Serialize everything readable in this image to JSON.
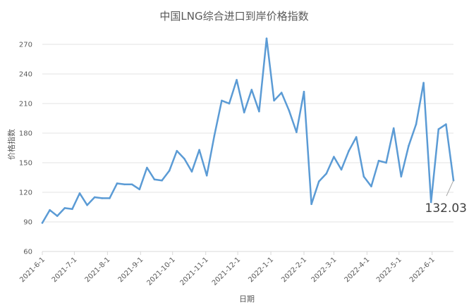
{
  "chart_data": {
    "type": "line",
    "title": "中国LNG综合进口到岸价格指数",
    "xlabel": "日期",
    "ylabel": "价格指数",
    "ylim": [
      60,
      270
    ],
    "yticks": [
      60,
      90,
      120,
      150,
      180,
      210,
      240,
      270
    ],
    "xtick_labels": [
      "2021-6-1",
      "2021-7-1",
      "2021-8-1",
      "2021-9-1",
      "2021-10-1",
      "2021-11-1",
      "2021-12-1",
      "2022-1-1",
      "2022-2-1",
      "2022-3-1",
      "2022-4-1",
      "2022-5-1",
      "2022-6-1"
    ],
    "grid": "horizontal",
    "line_color": "#5b9bd5",
    "series": [
      {
        "x": [
          "2021-6-1",
          "2021-6-8",
          "2021-6-15",
          "2021-6-22",
          "2021-6-29",
          "2021-7-6",
          "2021-7-13",
          "2021-7-20",
          "2021-7-27",
          "2021-8-3",
          "2021-8-10",
          "2021-8-17",
          "2021-8-24",
          "2021-8-31",
          "2021-9-7",
          "2021-9-14",
          "2021-9-21",
          "2021-9-28",
          "2021-10-5",
          "2021-10-12",
          "2021-10-19",
          "2021-10-26",
          "2021-11-2",
          "2021-11-9",
          "2021-11-16",
          "2021-11-23",
          "2021-11-30",
          "2021-12-7",
          "2021-12-14",
          "2021-12-21",
          "2021-12-28",
          "2022-1-4",
          "2022-1-11",
          "2022-1-18",
          "2022-1-25",
          "2022-2-1",
          "2022-2-8",
          "2022-2-15",
          "2022-2-22",
          "2022-3-1",
          "2022-3-8",
          "2022-3-15",
          "2022-3-22",
          "2022-3-29",
          "2022-4-5",
          "2022-4-12",
          "2022-4-19",
          "2022-4-26",
          "2022-5-3",
          "2022-5-10",
          "2022-5-17",
          "2022-5-24",
          "2022-5-31",
          "2022-6-7",
          "2022-6-14",
          "2022-6-21"
        ],
        "values": [
          89,
          102,
          96,
          104,
          103,
          119,
          107,
          115,
          114,
          114,
          129,
          128,
          128,
          123,
          145,
          133,
          132,
          142,
          162,
          154,
          141,
          163,
          137,
          177,
          213,
          210,
          234,
          201,
          224,
          202,
          276,
          213,
          221,
          203,
          181,
          222,
          108,
          131,
          139,
          156,
          143,
          162,
          176,
          136,
          126,
          152,
          150,
          185,
          136,
          167,
          189,
          231,
          110,
          184,
          189,
          132.03
        ]
      }
    ],
    "annotations": [
      {
        "text": "132.03",
        "point": "2022-6-21"
      }
    ]
  }
}
